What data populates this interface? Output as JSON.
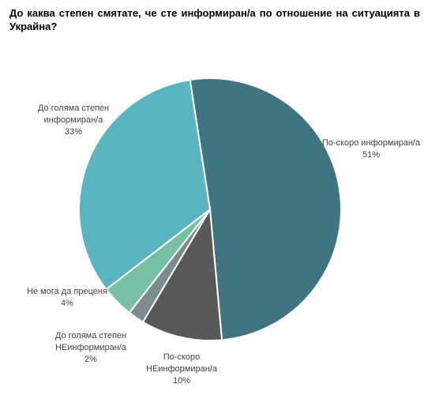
{
  "chart_data": {
    "type": "pie",
    "title": "До каква степен смятате, че сте информиран/а по отношение на ситуацията в Украйна?",
    "categories": [
      "По-скоро информиран/а",
      "По-скоро НЕинформиран/а",
      "До голяма степен НЕинформиран/а",
      "Не мога да преценя",
      "До голяма степен информиран/а"
    ],
    "values": [
      51,
      10,
      2,
      4,
      33
    ],
    "value_labels": [
      "51%",
      "10%",
      "2%",
      "4%",
      "33%"
    ],
    "colors": [
      "#3f7480",
      "#595959",
      "#7b8c8e",
      "#76c0a6",
      "#5ab5c0"
    ]
  }
}
